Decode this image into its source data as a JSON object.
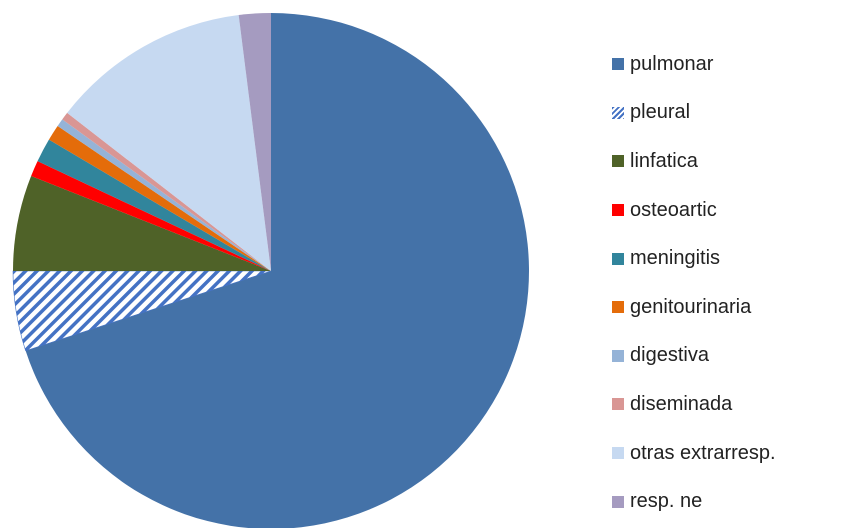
{
  "chart_data": {
    "type": "pie",
    "start_angle_deg": 0,
    "direction": "clockwise",
    "legend_position": "right",
    "categories": [
      "pulmonar",
      "pleural",
      "linfatica",
      "osteoartic",
      "meningitis",
      "genitourinaria",
      "digestiva",
      "diseminada",
      "otras extrarresp.",
      "resp. ne"
    ],
    "values": [
      70.0,
      5.0,
      6.0,
      1.0,
      1.5,
      1.0,
      0.5,
      0.5,
      12.5,
      2.0
    ],
    "series": [
      {
        "label": "pulmonar",
        "value": 70.0,
        "color": "#4472a8",
        "pattern": "solid"
      },
      {
        "label": "pleural",
        "value": 5.0,
        "color": "#4472c4",
        "pattern": "diagonal-stripes"
      },
      {
        "label": "linfatica",
        "value": 6.0,
        "color": "#4f6228",
        "pattern": "solid"
      },
      {
        "label": "osteoartic",
        "value": 1.0,
        "color": "#ff0000",
        "pattern": "solid"
      },
      {
        "label": "meningitis",
        "value": 1.5,
        "color": "#31859c",
        "pattern": "solid"
      },
      {
        "label": "genitourinaria",
        "value": 1.0,
        "color": "#e46c0a",
        "pattern": "solid"
      },
      {
        "label": "digestiva",
        "value": 0.5,
        "color": "#95b3d7",
        "pattern": "solid"
      },
      {
        "label": "diseminada",
        "value": 0.5,
        "color": "#d99694",
        "pattern": "solid"
      },
      {
        "label": "otras extrarresp.",
        "value": 12.5,
        "color": "#c6d9f1",
        "pattern": "solid"
      },
      {
        "label": "resp. ne",
        "value": 2.0,
        "color": "#a59bc0",
        "pattern": "solid"
      }
    ]
  }
}
